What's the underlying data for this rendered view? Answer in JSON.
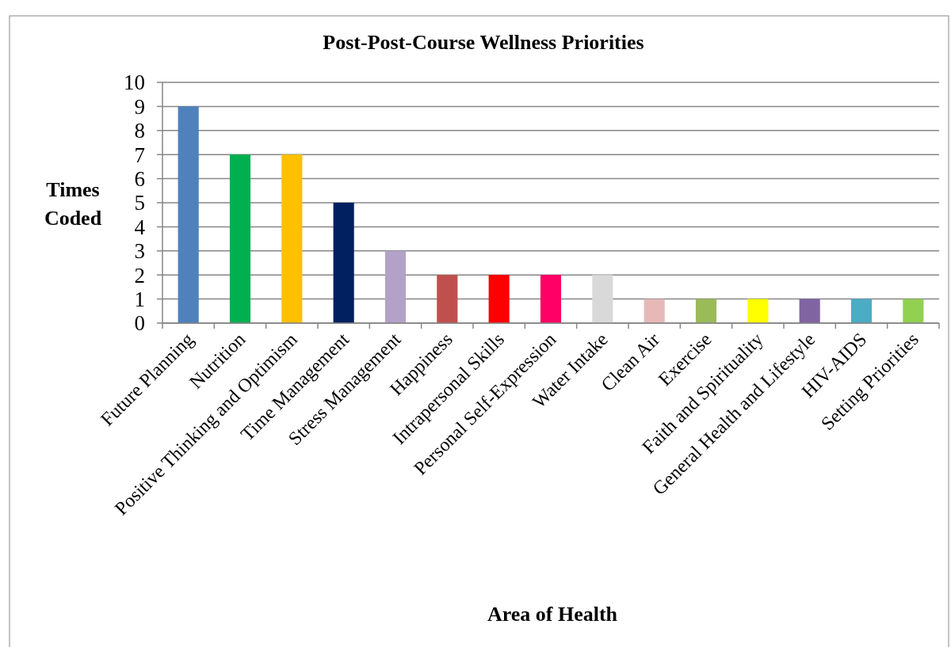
{
  "chart_data": {
    "type": "bar",
    "title": "Post-Post-Course Wellness Priorities",
    "xlabel": "Area of Health",
    "ylabel": "Times Coded",
    "categories": [
      "Future Planning",
      "Nutrition",
      "Positive Thinking and Optimism",
      "Time Management",
      "Stress Management",
      "Happiness",
      "Intrapersonal Skills",
      "Personal Self-Expression",
      "Water Intake",
      "Clean Air",
      "Exercise",
      "Faith and Spirituality",
      "General Health and Lifestyle",
      "HIV-AIDS",
      "Setting Priorities"
    ],
    "values": [
      9,
      7,
      7,
      5,
      3,
      2,
      2,
      2,
      2,
      1,
      1,
      1,
      1,
      1,
      1
    ],
    "colors": [
      "#4f81bd",
      "#00b050",
      "#ffc000",
      "#002060",
      "#b3a2c7",
      "#c0504d",
      "#ff0000",
      "#ff0066",
      "#d9d9d9",
      "#e6b9b8",
      "#9bbb59",
      "#ffff00",
      "#8064a2",
      "#4bacc6",
      "#92d050"
    ],
    "ylim": [
      0,
      10
    ],
    "yticks": [
      0,
      1,
      2,
      3,
      4,
      5,
      6,
      7,
      8,
      9,
      10
    ],
    "grid": "y"
  }
}
